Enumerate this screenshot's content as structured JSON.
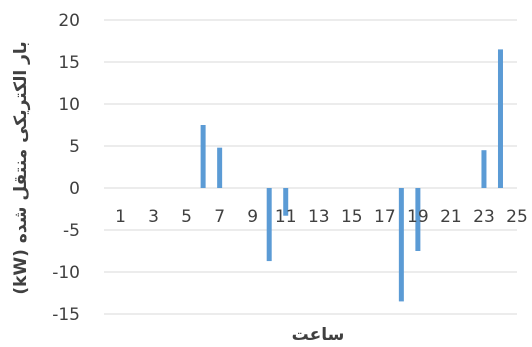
{
  "chart_data": {
    "type": "bar",
    "xlabel": "ساعت",
    "ylabel": "بار الکتریکی منتقل شده (kW)",
    "ylim": [
      -15,
      20
    ],
    "xlim": [
      0,
      25
    ],
    "yticks": [
      20,
      15,
      10,
      5,
      0,
      -5,
      -10,
      -15
    ],
    "xticks": [
      1,
      3,
      5,
      7,
      9,
      11,
      13,
      15,
      17,
      19,
      21,
      23,
      25
    ],
    "grid": "horizontal",
    "legend": "none",
    "bar_color": "#5b9bd5",
    "grid_color": "#d9d9d9",
    "series": [
      {
        "x": [
          6,
          7,
          10,
          11,
          18,
          19,
          23,
          24
        ],
        "values": [
          7.5,
          4.8,
          -8.7,
          -3.3,
          -13.5,
          -7.5,
          4.5,
          16.5
        ]
      }
    ]
  }
}
